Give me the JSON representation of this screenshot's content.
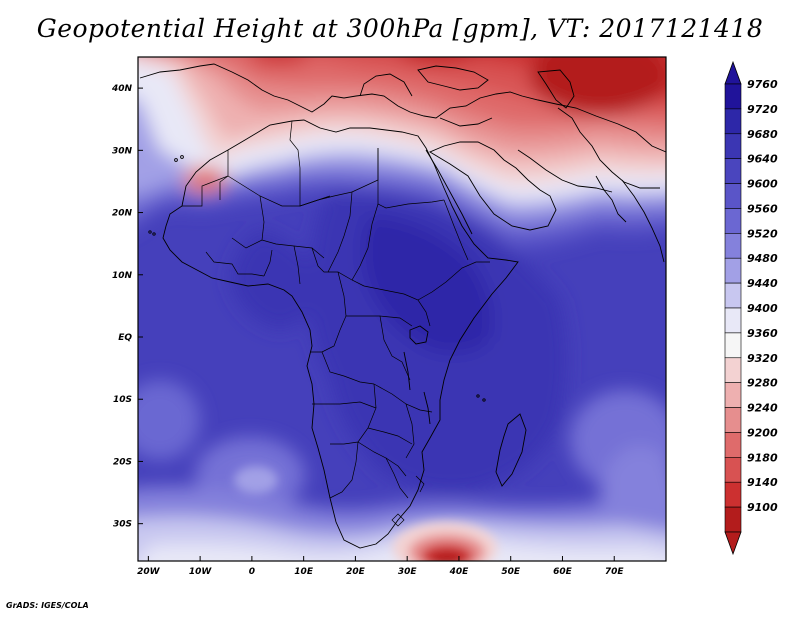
{
  "title": "Geopotential Height at 300hPa [gpm], VT: 2017121418",
  "footer": "GrADS: IGES/COLA",
  "map": {
    "region": "Africa",
    "variable": "Geopotential Height at 300hPa",
    "units": "gpm",
    "valid_time": "2017121418",
    "lon_range": [
      -22,
      80
    ],
    "lat_range": [
      -36,
      45
    ],
    "x_ticks": [
      {
        "lon": -20,
        "label": "20W"
      },
      {
        "lon": -10,
        "label": "10W"
      },
      {
        "lon": 0,
        "label": "0"
      },
      {
        "lon": 10,
        "label": "10E"
      },
      {
        "lon": 20,
        "label": "20E"
      },
      {
        "lon": 30,
        "label": "30E"
      },
      {
        "lon": 40,
        "label": "40E"
      },
      {
        "lon": 50,
        "label": "50E"
      },
      {
        "lon": 60,
        "label": "60E"
      },
      {
        "lon": 70,
        "label": "70E"
      }
    ],
    "y_ticks": [
      {
        "lat": 40,
        "label": "40N"
      },
      {
        "lat": 30,
        "label": "30N"
      },
      {
        "lat": 20,
        "label": "20N"
      },
      {
        "lat": 10,
        "label": "10N"
      },
      {
        "lat": 0,
        "label": "EQ"
      },
      {
        "lat": -10,
        "label": "10S"
      },
      {
        "lat": -20,
        "label": "20S"
      },
      {
        "lat": -30,
        "label": "30S"
      }
    ]
  },
  "colorbar": {
    "levels": [
      {
        "value": "9760",
        "color": "#20139a"
      },
      {
        "value": "9720",
        "color": "#2d27a8"
      },
      {
        "value": "9680",
        "color": "#3b36b3"
      },
      {
        "value": "9640",
        "color": "#4a45be"
      },
      {
        "value": "9600",
        "color": "#5a55c8"
      },
      {
        "value": "9560",
        "color": "#6b67d2"
      },
      {
        "value": "9520",
        "color": "#8481dc"
      },
      {
        "value": "9480",
        "color": "#a2a0e6"
      },
      {
        "value": "9440",
        "color": "#c8c7f0"
      },
      {
        "value": "9400",
        "color": "#e8e8f7"
      },
      {
        "value": "9360",
        "color": "#f6f6f6"
      },
      {
        "value": "9320",
        "color": "#f3d2d2"
      },
      {
        "value": "9280",
        "color": "#eeb0b0"
      },
      {
        "value": "9240",
        "color": "#e68e8e"
      },
      {
        "value": "9200",
        "color": "#df6b6b"
      },
      {
        "value": "9180",
        "color": "#d85252"
      },
      {
        "value": "9140",
        "color": "#cc3030"
      },
      {
        "value": "9100",
        "color": "#b31c1c"
      }
    ],
    "top_arrow_color": "#20139a",
    "bottom_arrow_color": "#b31c1c"
  }
}
